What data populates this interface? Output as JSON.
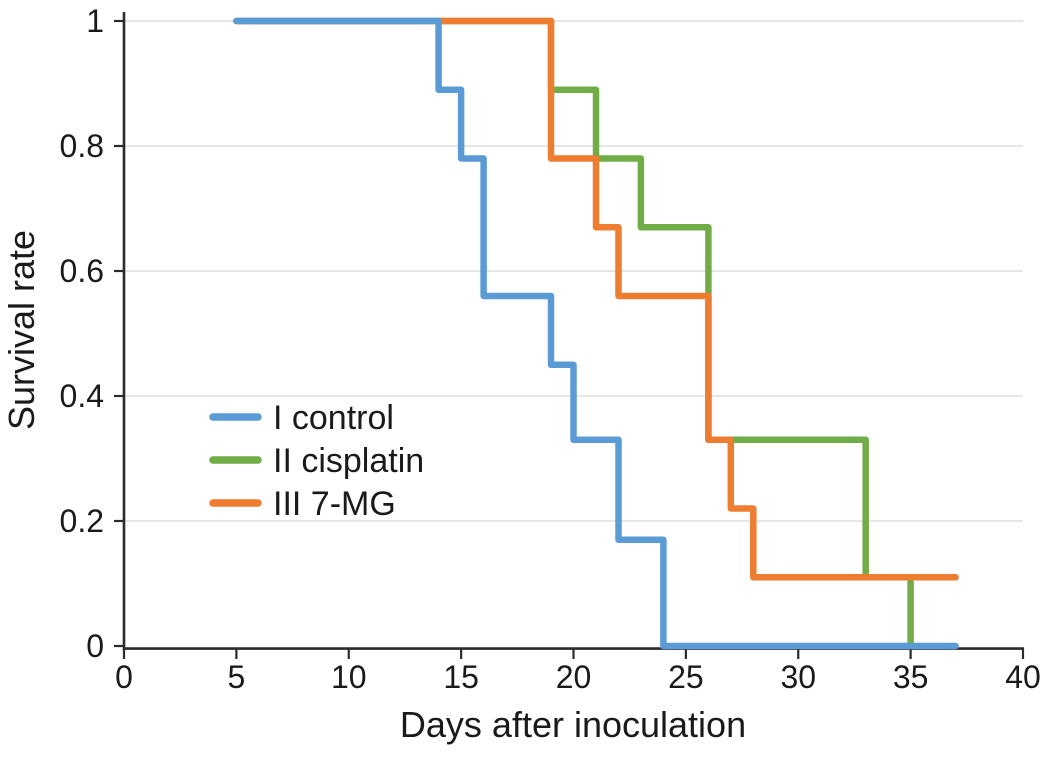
{
  "chart_data": {
    "type": "line",
    "step": true,
    "description": "Kaplan-Meier style survival curves for three treatment groups",
    "xlabel": "Days after inoculation",
    "ylabel": "Survival rate",
    "xlim": [
      0,
      40
    ],
    "ylim": [
      0,
      1
    ],
    "xticks": [
      {
        "v": 0,
        "label": "0"
      },
      {
        "v": 5,
        "label": "5"
      },
      {
        "v": 10,
        "label": "10"
      },
      {
        "v": 15,
        "label": "15"
      },
      {
        "v": 20,
        "label": "20"
      },
      {
        "v": 25,
        "label": "25"
      },
      {
        "v": 30,
        "label": "30"
      },
      {
        "v": 35,
        "label": "35"
      },
      {
        "v": 40,
        "label": "40"
      }
    ],
    "yticks": [
      {
        "v": 0,
        "label": "0"
      },
      {
        "v": 0.2,
        "label": "0.2"
      },
      {
        "v": 0.4,
        "label": "0.4"
      },
      {
        "v": 0.6,
        "label": "0.6"
      },
      {
        "v": 0.8,
        "label": "0.8"
      },
      {
        "v": 1,
        "label": "1"
      }
    ],
    "grid": "horizontal",
    "legend_position": "inside-middle-left",
    "series": [
      {
        "name": "I control",
        "color": "#5B9BD5",
        "points": [
          [
            5,
            1
          ],
          [
            14,
            1
          ],
          [
            14,
            0.89
          ],
          [
            15,
            0.89
          ],
          [
            15,
            0.78
          ],
          [
            16,
            0.78
          ],
          [
            16,
            0.56
          ],
          [
            19,
            0.56
          ],
          [
            19,
            0.45
          ],
          [
            20,
            0.45
          ],
          [
            20,
            0.33
          ],
          [
            22,
            0.33
          ],
          [
            22,
            0.17
          ],
          [
            24,
            0.17
          ],
          [
            24,
            0
          ],
          [
            37,
            0
          ]
        ]
      },
      {
        "name": "II cisplatin",
        "color": "#70AD47",
        "points": [
          [
            5,
            1
          ],
          [
            19,
            1
          ],
          [
            19,
            0.89
          ],
          [
            21,
            0.89
          ],
          [
            21,
            0.78
          ],
          [
            23,
            0.78
          ],
          [
            23,
            0.67
          ],
          [
            26,
            0.67
          ],
          [
            26,
            0.33
          ],
          [
            33,
            0.33
          ],
          [
            33,
            0.11
          ],
          [
            35,
            0.11
          ],
          [
            35,
            0
          ]
        ]
      },
      {
        "name": "III 7-MG",
        "color": "#ED7D31",
        "points": [
          [
            5,
            1
          ],
          [
            19,
            1
          ],
          [
            19,
            0.78
          ],
          [
            21,
            0.78
          ],
          [
            21,
            0.67
          ],
          [
            22,
            0.67
          ],
          [
            22,
            0.56
          ],
          [
            26,
            0.56
          ],
          [
            26,
            0.33
          ],
          [
            27,
            0.33
          ],
          [
            27,
            0.22
          ],
          [
            28,
            0.22
          ],
          [
            28,
            0.11
          ],
          [
            37,
            0.11
          ]
        ]
      }
    ],
    "colors": {
      "grid": "#DEDEDE",
      "axis": "#2B2B2B",
      "text": "#1A1A1A"
    }
  }
}
